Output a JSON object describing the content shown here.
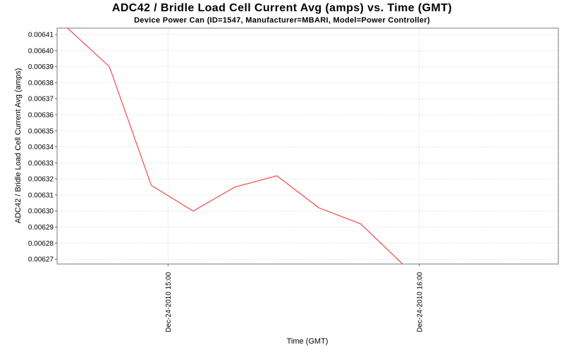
{
  "chart_data": {
    "type": "line",
    "title": "ADC42 / Bridle Load Cell Current Avg (amps) vs. Time (GMT)",
    "subtitle": "Device Power Can (ID=1547, Manufacturer=MBARI, Model=Power Controller)",
    "xlabel": "Time (GMT)",
    "ylabel": "ADC42 / Bridle Load Cell Current Avg (amps)",
    "legend": "none",
    "grid": "dashed horizontal lines at every y tick, dashed vertical lines at every x tick",
    "series": [
      {
        "name": "Bridle Load Cell Current Avg (amps)",
        "color": "#f25757",
        "points": [
          {
            "time": "Dec-24-2010 14:36",
            "minutes": -24,
            "value": 0.006414
          },
          {
            "time": "Dec-24-2010 14:46",
            "minutes": -14,
            "value": 0.00639
          },
          {
            "time": "Dec-24-2010 14:56",
            "minutes": -4,
            "value": 0.006316
          },
          {
            "time": "Dec-24-2010 15:06",
            "minutes": 6,
            "value": 0.0063
          },
          {
            "time": "Dec-24-2010 15:16",
            "minutes": 16,
            "value": 0.006315
          },
          {
            "time": "Dec-24-2010 15:26",
            "minutes": 26,
            "value": 0.006322
          },
          {
            "time": "Dec-24-2010 15:36",
            "minutes": 36,
            "value": 0.006302
          },
          {
            "time": "Dec-24-2010 15:46",
            "minutes": 46,
            "value": 0.006292
          },
          {
            "time": "Dec-24-2010 15:56",
            "minutes": 56,
            "value": 0.006267
          }
        ]
      }
    ],
    "y_ticks": [
      {
        "label": "0.00627",
        "value": 0.00627
      },
      {
        "label": "0.00628",
        "value": 0.00628
      },
      {
        "label": "0.00629",
        "value": 0.00629
      },
      {
        "label": "0.00630",
        "value": 0.0063
      },
      {
        "label": "0.00631",
        "value": 0.00631
      },
      {
        "label": "0.00632",
        "value": 0.00632
      },
      {
        "label": "0.00633",
        "value": 0.00633
      },
      {
        "label": "0.00634",
        "value": 0.00634
      },
      {
        "label": "0.00635",
        "value": 0.00635
      },
      {
        "label": "0.00636",
        "value": 0.00636
      },
      {
        "label": "0.00637",
        "value": 0.00637
      },
      {
        "label": "0.00638",
        "value": 0.00638
      },
      {
        "label": "0.00639",
        "value": 0.00639
      },
      {
        "label": "0.00640",
        "value": 0.0064
      },
      {
        "label": "0.00641",
        "value": 0.00641
      }
    ],
    "x_ticks": [
      {
        "label": "Dec-24-2010 15:00",
        "minutes": 0
      },
      {
        "label": "Dec-24-2010 16:00",
        "minutes": 60
      }
    ],
    "ylim": [
      0.006267,
      0.006414
    ],
    "xlim_minutes": [
      -26.5,
      93.2
    ],
    "colors": {
      "line": "#f25757",
      "gridline": "#e2e2e2",
      "plot_border": "#909090",
      "tick_mark": "#666666",
      "text": "#000000",
      "background": "#ffffff"
    }
  }
}
